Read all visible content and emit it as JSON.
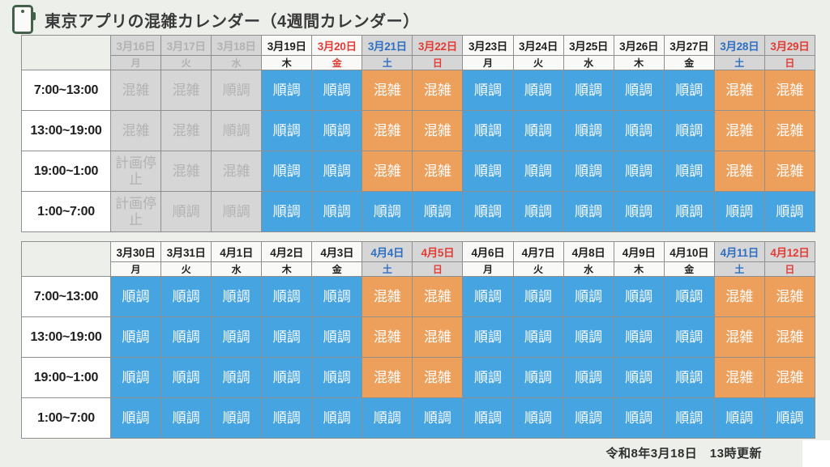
{
  "page": {
    "title": "東京アプリの混雑カレンダー（4週間カレンダー）",
    "footer": "令和8年3月18日　13時更新"
  },
  "colors": {
    "background": "#edf0ea",
    "border": "#8f8f8f",
    "icon_green": "#44604a",
    "smooth_blue": "#46a5e0",
    "busy_orange": "#eca05c",
    "gray_bg": "#d6d6d6",
    "past_text": "#b2b2b2",
    "white_bg": "#f9f9f7",
    "ink": "#1f1f1f",
    "sat_blue": "#2e6fc3",
    "red": "#e23c35"
  },
  "statuses": {
    "smooth": {
      "label": "順調"
    },
    "busy": {
      "label": "混雑"
    },
    "stop": {
      "label": "計画停止"
    }
  },
  "tables": [
    {
      "days": [
        {
          "date": "3月16日",
          "weekday": "月",
          "kind": "past"
        },
        {
          "date": "3月17日",
          "weekday": "火",
          "kind": "past"
        },
        {
          "date": "3月18日",
          "weekday": "水",
          "kind": "past"
        },
        {
          "date": "3月19日",
          "weekday": "木",
          "kind": "weekday"
        },
        {
          "date": "3月20日",
          "weekday": "金",
          "kind": "holiday"
        },
        {
          "date": "3月21日",
          "weekday": "土",
          "kind": "saturday"
        },
        {
          "date": "3月22日",
          "weekday": "日",
          "kind": "sunday"
        },
        {
          "date": "3月23日",
          "weekday": "月",
          "kind": "weekday"
        },
        {
          "date": "3月24日",
          "weekday": "火",
          "kind": "weekday"
        },
        {
          "date": "3月25日",
          "weekday": "水",
          "kind": "weekday"
        },
        {
          "date": "3月26日",
          "weekday": "木",
          "kind": "weekday"
        },
        {
          "date": "3月27日",
          "weekday": "金",
          "kind": "weekday"
        },
        {
          "date": "3月28日",
          "weekday": "土",
          "kind": "saturday"
        },
        {
          "date": "3月29日",
          "weekday": "日",
          "kind": "sunday"
        }
      ],
      "rows": [
        {
          "time": "7:00~13:00",
          "cells": [
            "past-busy",
            "past-busy",
            "past-smooth",
            "smooth",
            "smooth",
            "busy",
            "busy",
            "smooth",
            "smooth",
            "smooth",
            "smooth",
            "smooth",
            "busy",
            "busy"
          ]
        },
        {
          "time": "13:00~19:00",
          "cells": [
            "past-busy",
            "past-busy",
            "past-smooth",
            "smooth",
            "smooth",
            "busy",
            "busy",
            "smooth",
            "smooth",
            "smooth",
            "smooth",
            "smooth",
            "busy",
            "busy"
          ]
        },
        {
          "time": "19:00~1:00",
          "cells": [
            "past-stop",
            "past-busy",
            "past-busy",
            "smooth",
            "smooth",
            "busy",
            "busy",
            "smooth",
            "smooth",
            "smooth",
            "smooth",
            "smooth",
            "busy",
            "busy"
          ]
        },
        {
          "time": "1:00~7:00",
          "cells": [
            "past-stop",
            "past-smooth",
            "past-smooth",
            "smooth",
            "smooth",
            "smooth",
            "smooth",
            "smooth",
            "smooth",
            "smooth",
            "smooth",
            "smooth",
            "smooth",
            "smooth"
          ]
        }
      ]
    },
    {
      "days": [
        {
          "date": "3月30日",
          "weekday": "月",
          "kind": "weekday"
        },
        {
          "date": "3月31日",
          "weekday": "火",
          "kind": "weekday"
        },
        {
          "date": "4月1日",
          "weekday": "水",
          "kind": "weekday"
        },
        {
          "date": "4月2日",
          "weekday": "木",
          "kind": "weekday"
        },
        {
          "date": "4月3日",
          "weekday": "金",
          "kind": "weekday"
        },
        {
          "date": "4月4日",
          "weekday": "土",
          "kind": "saturday"
        },
        {
          "date": "4月5日",
          "weekday": "日",
          "kind": "sunday"
        },
        {
          "date": "4月6日",
          "weekday": "月",
          "kind": "weekday"
        },
        {
          "date": "4月7日",
          "weekday": "火",
          "kind": "weekday"
        },
        {
          "date": "4月8日",
          "weekday": "水",
          "kind": "weekday"
        },
        {
          "date": "4月9日",
          "weekday": "木",
          "kind": "weekday"
        },
        {
          "date": "4月10日",
          "weekday": "金",
          "kind": "weekday"
        },
        {
          "date": "4月11日",
          "weekday": "土",
          "kind": "saturday"
        },
        {
          "date": "4月12日",
          "weekday": "日",
          "kind": "sunday"
        }
      ],
      "rows": [
        {
          "time": "7:00~13:00",
          "cells": [
            "smooth",
            "smooth",
            "smooth",
            "smooth",
            "smooth",
            "busy",
            "busy",
            "smooth",
            "smooth",
            "smooth",
            "smooth",
            "smooth",
            "busy",
            "busy"
          ]
        },
        {
          "time": "13:00~19:00",
          "cells": [
            "smooth",
            "smooth",
            "smooth",
            "smooth",
            "smooth",
            "busy",
            "busy",
            "smooth",
            "smooth",
            "smooth",
            "smooth",
            "smooth",
            "busy",
            "busy"
          ]
        },
        {
          "time": "19:00~1:00",
          "cells": [
            "smooth",
            "smooth",
            "smooth",
            "smooth",
            "smooth",
            "busy",
            "busy",
            "smooth",
            "smooth",
            "smooth",
            "smooth",
            "smooth",
            "busy",
            "busy"
          ]
        },
        {
          "time": "1:00~7:00",
          "cells": [
            "smooth",
            "smooth",
            "smooth",
            "smooth",
            "smooth",
            "smooth",
            "smooth",
            "smooth",
            "smooth",
            "smooth",
            "smooth",
            "smooth",
            "smooth",
            "smooth"
          ]
        }
      ]
    }
  ]
}
